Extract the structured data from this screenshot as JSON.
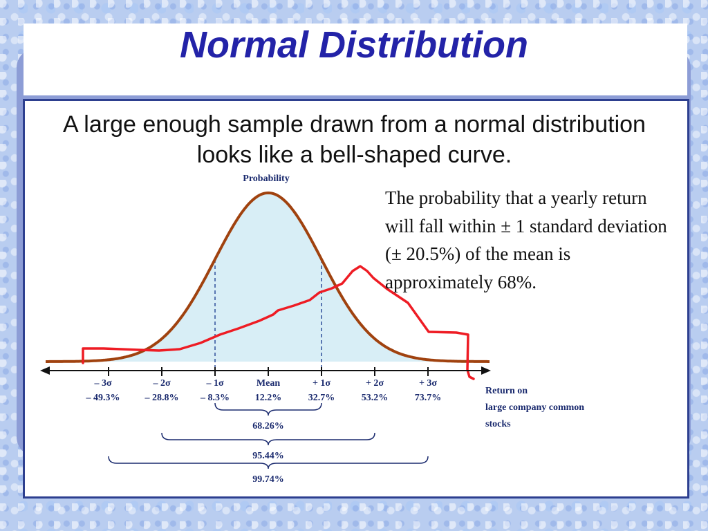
{
  "slide": {
    "title": "Normal Distribution",
    "intro": "A large enough sample drawn from a normal distribution looks like a bell-shaped curve.",
    "note": "The probability that a yearly return will fall within ± 1 standard deviation (± 20.5%) of the mean is approximately 68%."
  },
  "diagram": {
    "y_axis_label": "Probability",
    "x_axis_label_lines": [
      "Return on",
      "large company common",
      "stocks"
    ],
    "mean_return": 12.2,
    "std_dev": 20.5,
    "ticks": [
      {
        "sigma": "– 3σ",
        "value": "– 49.3%"
      },
      {
        "sigma": "– 2σ",
        "value": "– 28.8%"
      },
      {
        "sigma": "– 1σ",
        "value": "– 8.3%"
      },
      {
        "sigma": "Mean",
        "value": "12.2%"
      },
      {
        "sigma": "+ 1σ",
        "value": "32.7%"
      },
      {
        "sigma": "+ 2σ",
        "value": "53.2%"
      },
      {
        "sigma": "+ 3σ",
        "value": "73.7%"
      }
    ],
    "ranges": [
      {
        "label": "68.26%",
        "from_sigma": -1,
        "to_sigma": 1
      },
      {
        "label": "95.44%",
        "from_sigma": -2,
        "to_sigma": 2
      },
      {
        "label": "99.74%",
        "from_sigma": -3,
        "to_sigma": 3
      }
    ],
    "colors": {
      "bell_curve": "#a0420f",
      "bell_fill": "#d8eef6",
      "handwritten_overlay": "#ee1c24",
      "axis": "#111111",
      "labels": "#1a2a6e",
      "title": "#2323a8"
    }
  }
}
